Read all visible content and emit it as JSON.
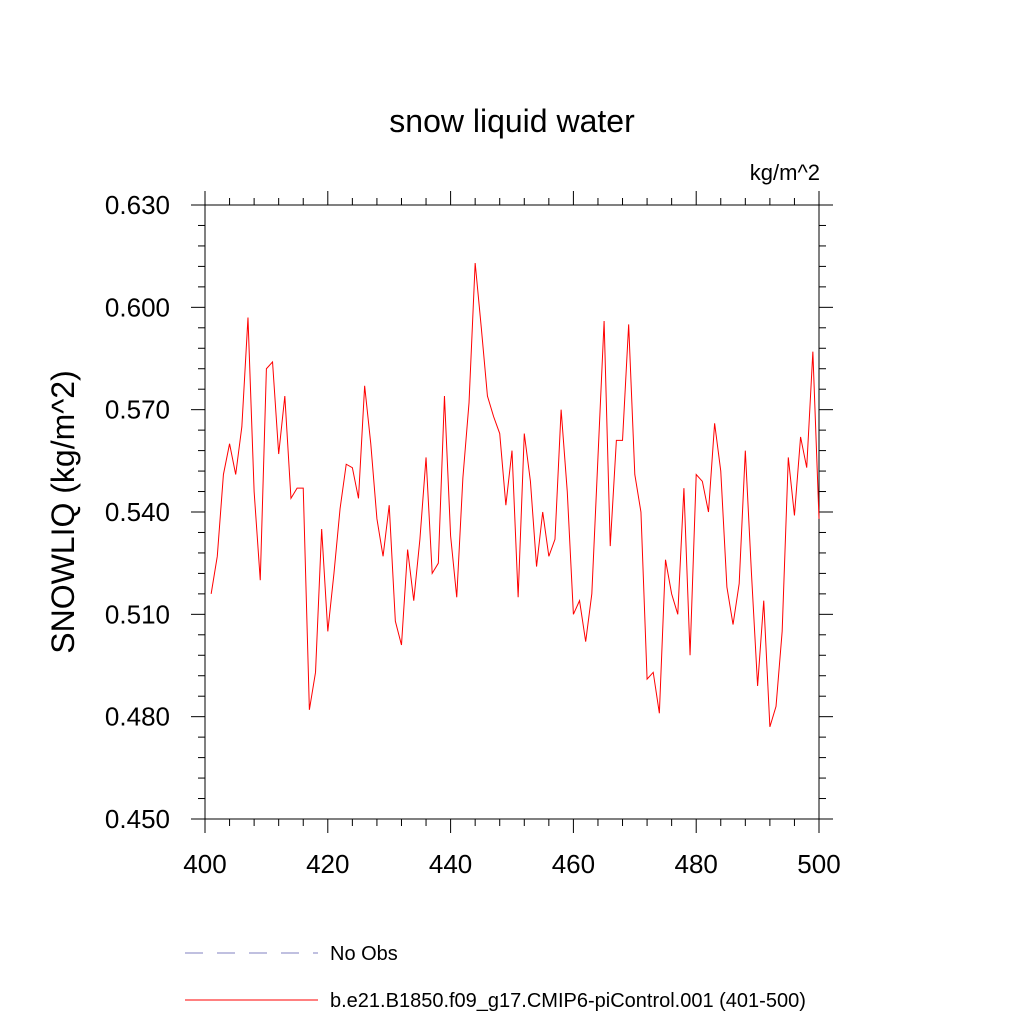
{
  "chart_data": {
    "type": "line",
    "title": "snow liquid water",
    "units": "kg/m^2",
    "ylabel": "SNOWLIQ  (kg/m^2)",
    "xlabel": "",
    "xlim": [
      400,
      500
    ],
    "ylim": [
      0.45,
      0.63
    ],
    "xticks": [
      "400",
      "420",
      "440",
      "460",
      "480",
      "500"
    ],
    "yticks": [
      "0.450",
      "0.480",
      "0.510",
      "0.540",
      "0.570",
      "0.600",
      "0.630"
    ],
    "grid": false,
    "legend": "bottom",
    "colors": {
      "model": "#ff0000",
      "obs": "#8080c0"
    },
    "legend_entries": [
      "No Obs",
      "b.e21.B1850.f09_g17.CMIP6-piControl.001 (401-500)"
    ],
    "x": [
      401,
      402,
      403,
      404,
      405,
      406,
      407,
      408,
      409,
      410,
      411,
      412,
      413,
      414,
      415,
      416,
      417,
      418,
      419,
      420,
      421,
      422,
      423,
      424,
      425,
      426,
      427,
      428,
      429,
      430,
      431,
      432,
      433,
      434,
      435,
      436,
      437,
      438,
      439,
      440,
      441,
      442,
      443,
      444,
      445,
      446,
      447,
      448,
      449,
      450,
      451,
      452,
      453,
      454,
      455,
      456,
      457,
      458,
      459,
      460,
      461,
      462,
      463,
      464,
      465,
      466,
      467,
      468,
      469,
      470,
      471,
      472,
      473,
      474,
      475,
      476,
      477,
      478,
      479,
      480,
      481,
      482,
      483,
      484,
      485,
      486,
      487,
      488,
      489,
      490,
      491,
      492,
      493,
      494,
      495,
      496,
      497,
      498,
      499,
      500
    ],
    "values": [
      0.516,
      0.527,
      0.551,
      0.56,
      0.551,
      0.565,
      0.597,
      0.546,
      0.52,
      0.582,
      0.584,
      0.557,
      0.574,
      0.544,
      0.547,
      0.547,
      0.482,
      0.493,
      0.535,
      0.505,
      0.522,
      0.541,
      0.554,
      0.553,
      0.544,
      0.577,
      0.56,
      0.538,
      0.527,
      0.542,
      0.508,
      0.501,
      0.529,
      0.514,
      0.532,
      0.556,
      0.522,
      0.525,
      0.574,
      0.533,
      0.515,
      0.55,
      0.572,
      0.613,
      0.594,
      0.574,
      0.568,
      0.563,
      0.542,
      0.558,
      0.515,
      0.563,
      0.549,
      0.524,
      0.54,
      0.527,
      0.532,
      0.57,
      0.546,
      0.51,
      0.514,
      0.502,
      0.516,
      0.556,
      0.596,
      0.53,
      0.561,
      0.561,
      0.595,
      0.551,
      0.54,
      0.491,
      0.493,
      0.481,
      0.526,
      0.516,
      0.51,
      0.547,
      0.498,
      0.551,
      0.549,
      0.54,
      0.566,
      0.552,
      0.518,
      0.507,
      0.519,
      0.558,
      0.522,
      0.489,
      0.514,
      0.477,
      0.483,
      0.505,
      0.556,
      0.539,
      0.562,
      0.553,
      0.587,
      0.538
    ]
  }
}
